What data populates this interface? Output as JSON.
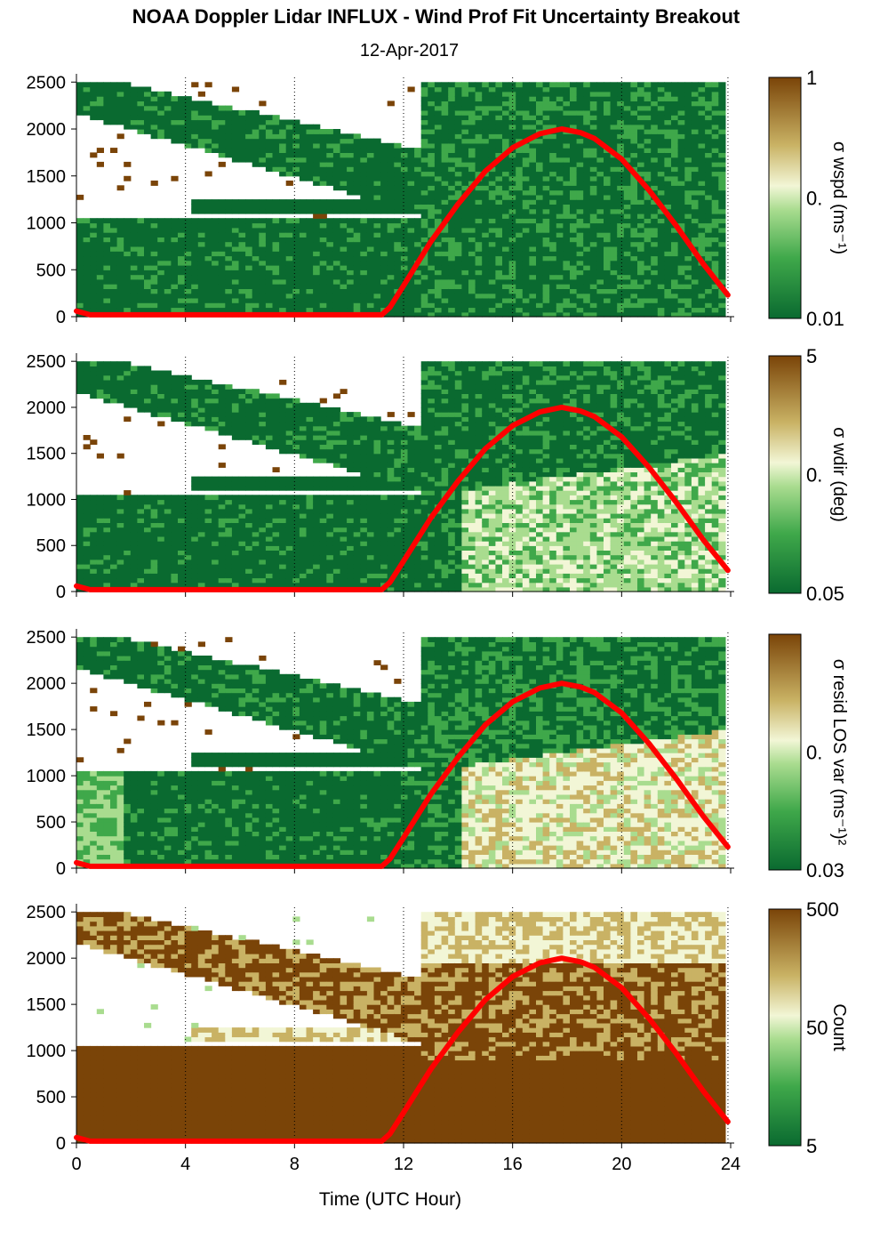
{
  "title": "NOAA Doppler Lidar INFLUX - Wind Prof Fit Uncertainty Breakout",
  "subtitle": "12-Apr-2017",
  "chart_data": [
    {
      "type": "heatmap",
      "colorbar_label": "σ wspd (ms⁻¹)",
      "colorbar_ticks": [
        "1",
        "0.",
        "0.01"
      ],
      "colorbar_scale": "log",
      "ylim": [
        0,
        2550
      ],
      "yticks": [
        "0",
        "500",
        "1000",
        "1500",
        "2000",
        "2500"
      ]
    },
    {
      "type": "heatmap",
      "colorbar_label": "σ wdir (deg)",
      "colorbar_ticks": [
        "5",
        "0.",
        "0.05"
      ],
      "colorbar_scale": "log",
      "ylim": [
        0,
        2550
      ],
      "yticks": [
        "0",
        "500",
        "1000",
        "1500",
        "2000",
        "2500"
      ]
    },
    {
      "type": "heatmap",
      "colorbar_label": "σ resid LOS var (ms⁻¹)²",
      "colorbar_ticks": [
        "0.",
        "0.03"
      ],
      "colorbar_scale": "log",
      "ylim": [
        0,
        2550
      ],
      "yticks": [
        "0",
        "500",
        "1000",
        "1500",
        "2000",
        "2500"
      ]
    },
    {
      "type": "heatmap",
      "colorbar_label": "Count",
      "colorbar_ticks": [
        "500",
        "50",
        "5"
      ],
      "colorbar_scale": "log",
      "ylim": [
        0,
        2550
      ],
      "yticks": [
        "0",
        "500",
        "1000",
        "1500",
        "2000",
        "2500"
      ],
      "xlabel": "Time (UTC Hour)",
      "xticks": [
        "0",
        "4",
        "8",
        "12",
        "16",
        "20",
        "24"
      ],
      "xlim": [
        0,
        24
      ]
    }
  ],
  "overlay_line": {
    "color": "#ff0000",
    "x": [
      0,
      0.5,
      1,
      2,
      4,
      6,
      8,
      10,
      11.2,
      11.5,
      12,
      13,
      14,
      15,
      16,
      17,
      17.8,
      18.5,
      19,
      20,
      21,
      22,
      23,
      23.9
    ],
    "y": [
      60,
      20,
      20,
      20,
      20,
      20,
      20,
      20,
      20,
      100,
      330,
      800,
      1200,
      1550,
      1800,
      1950,
      2000,
      1960,
      1900,
      1680,
      1350,
      970,
      560,
      230
    ]
  },
  "colors": {
    "dark_green": "#0a6a30",
    "mid_green": "#3fa84a",
    "light_green": "#a9dc8f",
    "pale": "#f2f6d6",
    "tan": "#c9b264",
    "brown": "#7a4408",
    "white": "#ffffff",
    "red": "#ff0000"
  }
}
